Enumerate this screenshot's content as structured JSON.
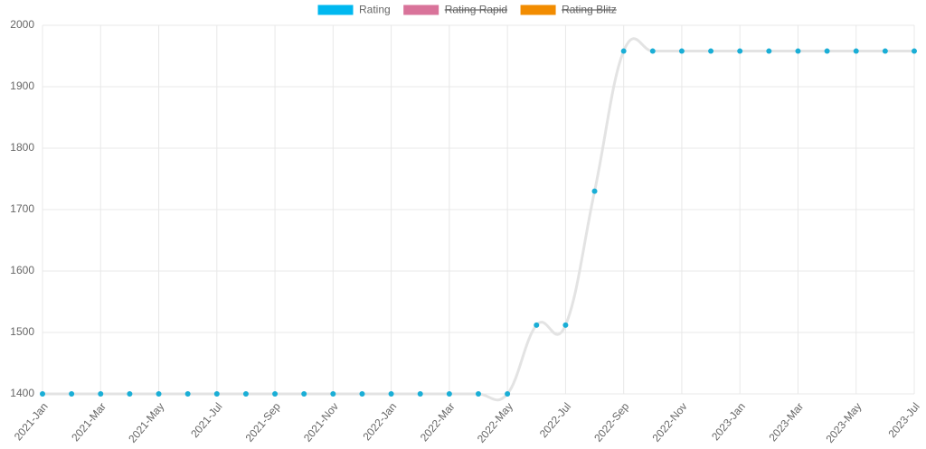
{
  "chart_data": {
    "type": "line",
    "categories": [
      "2021-Jan",
      null,
      "2021-Mar",
      null,
      "2021-May",
      null,
      "2021-Jul",
      null,
      "2021-Sep",
      null,
      "2021-Nov",
      null,
      "2022-Jan",
      null,
      "2022-Mar",
      null,
      "2022-May",
      null,
      "2022-Jul",
      null,
      "2022-Sep",
      null,
      "2022-Nov",
      null,
      "2023-Jan",
      null,
      "2023-Mar",
      null,
      "2023-May",
      null,
      "2023-Jul"
    ],
    "series": [
      {
        "name": "Rating",
        "color": "#00b8f0",
        "line_color": "#e3e3e3",
        "point_color": "#1aaed6",
        "hidden": false,
        "values": [
          1400,
          1400,
          1400,
          1400,
          1400,
          1400,
          1400,
          1400,
          1400,
          1400,
          1400,
          1400,
          1400,
          1400,
          1400,
          1400,
          1400,
          1512,
          1512,
          1730,
          1958,
          1958,
          1958,
          1958,
          1958,
          1958,
          1958,
          1958,
          1958,
          1958,
          1958
        ]
      },
      {
        "name": "Rating Rapid",
        "color": "#d9739a",
        "hidden": true
      },
      {
        "name": "Rating Blitz",
        "color": "#f28c00",
        "hidden": true
      }
    ],
    "ylim": [
      1400,
      2000
    ],
    "yticks": [
      1400,
      1500,
      1600,
      1700,
      1800,
      1900,
      2000
    ],
    "grid": true,
    "legend": "top"
  }
}
